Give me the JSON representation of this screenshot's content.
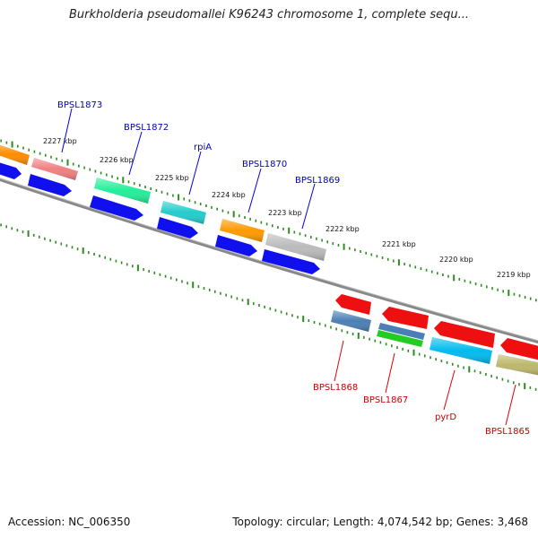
{
  "title": "Burkholderia pseudomallei K96243 chromosome 1, complete sequ...",
  "footer": {
    "accession": "Accession: NC_006350",
    "summary": "Topology: circular; Length: 4,074,542 bp; Genes: 3,468"
  },
  "colors": {
    "backbone": "#888888",
    "tick": "#2e8b22",
    "top_label": "#0000bb",
    "bottom_label": "#cc0000",
    "cds_top": "#1010ee",
    "cds_bottom": "#ee1010"
  },
  "coordinate_labels": [
    "2227 kbp",
    "2226 kbp",
    "2225 kbp",
    "2224 kbp",
    "2223 kbp",
    "2222 kbp",
    "2221 kbp",
    "2220 kbp",
    "2219 kbp"
  ],
  "top_genes": [
    {
      "name": "BPSL1873"
    },
    {
      "name": "BPSL1872"
    },
    {
      "name": "rpiA"
    },
    {
      "name": "BPSL1870"
    },
    {
      "name": "BPSL1869"
    }
  ],
  "bottom_genes": [
    {
      "name": "BPSL1868"
    },
    {
      "name": "BPSL1867"
    },
    {
      "name": "pyrD"
    },
    {
      "name": "BPSL1865"
    }
  ]
}
